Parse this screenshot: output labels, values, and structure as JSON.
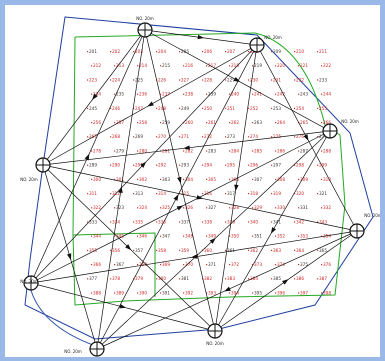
{
  "stations": [
    {
      "id": "st1",
      "label": "NO. 20m"
    },
    {
      "id": "st2",
      "label": "NO. 20m"
    },
    {
      "id": "st3",
      "label": "NO. 20m"
    },
    {
      "id": "st4",
      "label": "NO. 20m"
    },
    {
      "id": "st5",
      "label": "NO. 20m"
    },
    {
      "id": "st6",
      "label": "NO. 20m"
    },
    {
      "id": "st7",
      "label": "NO. 20m"
    },
    {
      "id": "st8",
      "label": "NO. 20m"
    },
    {
      "id": "st9",
      "label": "NO. 20m"
    }
  ],
  "grid": {
    "rows": 18,
    "cols": 11,
    "start_number": 201,
    "number_color": "#cc2222",
    "label_color": "#333333"
  },
  "colors": {
    "background": "#9ab8e8",
    "canvas": "#ffffff",
    "outer_boundary": "#1f3fa0",
    "inner_boundary": "#22aa22",
    "survey_lines": "#111111",
    "arc": "#3355aa"
  }
}
